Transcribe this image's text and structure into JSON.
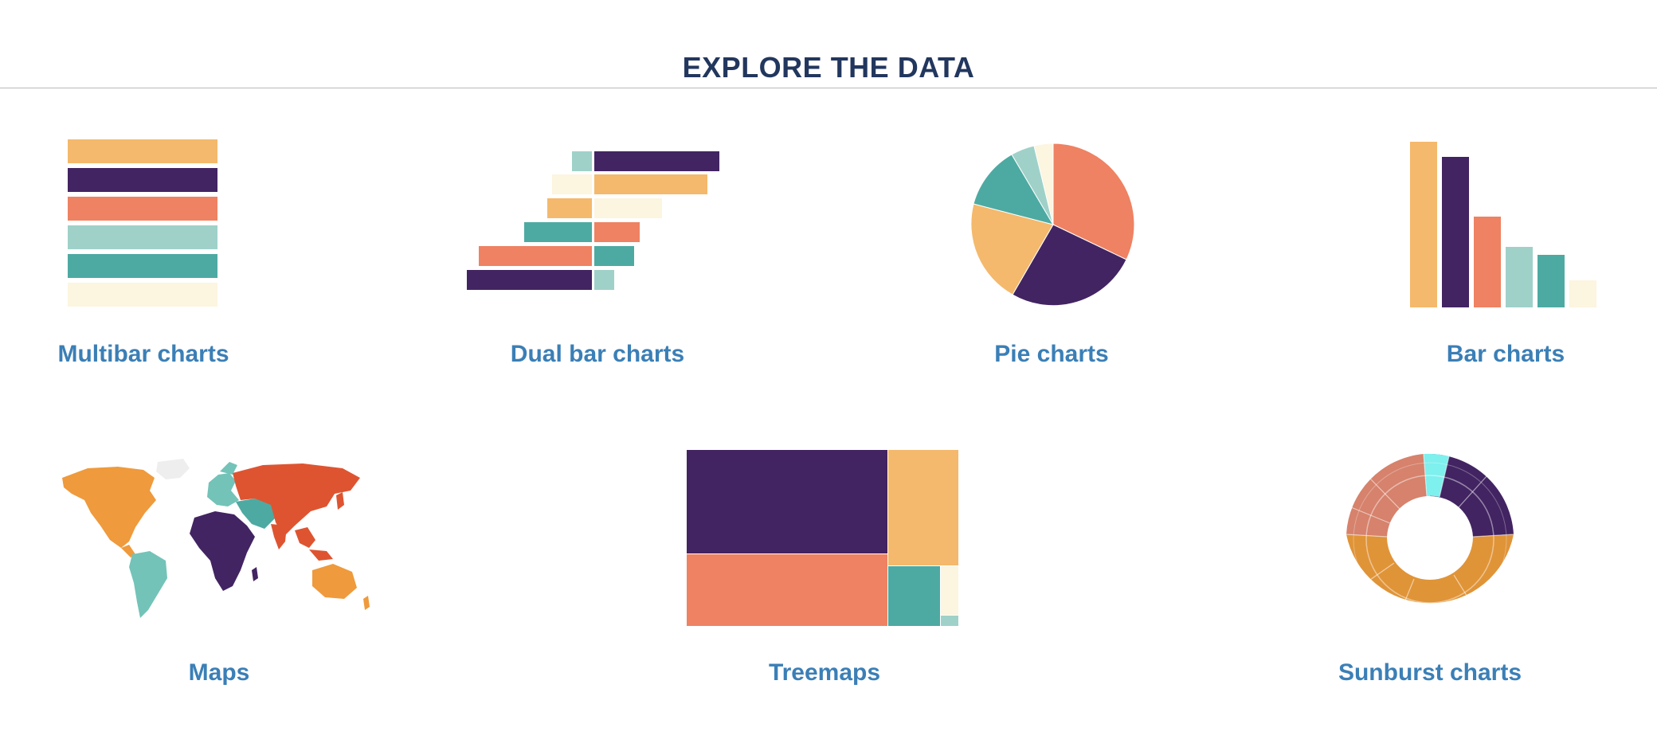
{
  "header": {
    "title": "EXPLORE THE DATA"
  },
  "colors": {
    "peach": "#f4b96c",
    "purple": "#422462",
    "coral": "#ee8262",
    "mint": "#9fd1c9",
    "teal": "#4daaa2",
    "cream": "#fcf5df",
    "orange_map": "#ef9a3c",
    "red_map": "#de5431",
    "mint_map": "#73c3b8",
    "sunburst_orange": "#e09438",
    "sunburst_coral": "#d6826c",
    "sunburst_cyan": "#7ef0ee",
    "label_blue": "#3b7fb6",
    "title_navy": "#22375e"
  },
  "tiles": [
    {
      "id": "multibar",
      "label": "Multibar charts",
      "icon": "multibar-chart-icon"
    },
    {
      "id": "dualbar",
      "label": "Dual bar charts",
      "icon": "dual-bar-chart-icon"
    },
    {
      "id": "pie",
      "label": "Pie charts",
      "icon": "pie-chart-icon"
    },
    {
      "id": "bar",
      "label": "Bar charts",
      "icon": "bar-chart-icon"
    },
    {
      "id": "maps",
      "label": "Maps",
      "icon": "world-map-icon"
    },
    {
      "id": "treemap",
      "label": "Treemaps",
      "icon": "treemap-icon"
    },
    {
      "id": "sunburst",
      "label": "Sunburst charts",
      "icon": "sunburst-chart-icon"
    }
  ]
}
